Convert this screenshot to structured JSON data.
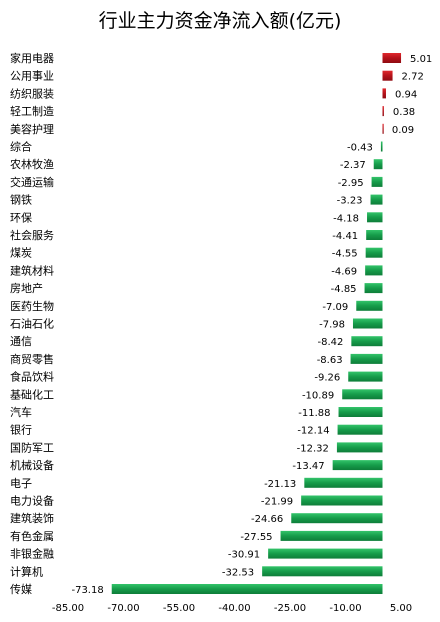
{
  "chart_data": {
    "type": "bar",
    "orientation": "horizontal",
    "title": "行业主力资金净流入额(亿元)",
    "xlabel": "",
    "ylabel": "",
    "xlim": [
      -85,
      5
    ],
    "xticks": [
      "-85.00",
      "-70.00",
      "-55.00",
      "-40.00",
      "-25.00",
      "-10.00",
      "5.00"
    ],
    "xtick_values": [
      -85,
      -70,
      -55,
      -40,
      -25,
      -10,
      5
    ],
    "grid": false,
    "legend": "none",
    "categories": [
      "家用电器",
      "公用事业",
      "纺织服装",
      "轻工制造",
      "美容护理",
      "综合",
      "农林牧渔",
      "交通运输",
      "钢铁",
      "环保",
      "社会服务",
      "煤炭",
      "建筑材料",
      "房地产",
      "医药生物",
      "石油石化",
      "通信",
      "商贸零售",
      "食品饮料",
      "基础化工",
      "汽车",
      "银行",
      "国防军工",
      "机械设备",
      "电子",
      "电力设备",
      "建筑装饰",
      "有色金属",
      "非银金融",
      "计算机",
      "传媒"
    ],
    "values": [
      5.01,
      2.72,
      0.94,
      0.38,
      0.09,
      -0.43,
      -2.37,
      -2.95,
      -3.23,
      -4.18,
      -4.41,
      -4.55,
      -4.69,
      -4.85,
      -7.09,
      -7.98,
      -8.42,
      -8.63,
      -9.26,
      -10.89,
      -11.88,
      -12.14,
      -12.32,
      -13.47,
      -21.13,
      -21.99,
      -24.66,
      -27.55,
      -30.91,
      -32.53,
      -73.18
    ],
    "value_labels": [
      "5.01",
      "2.72",
      "0.94",
      "0.38",
      "0.09",
      "-0.43",
      "-2.37",
      "-2.95",
      "-3.23",
      "-4.18",
      "-4.41",
      "-4.55",
      "-4.69",
      "-4.85",
      "-7.09",
      "-7.98",
      "-8.42",
      "-8.63",
      "-9.26",
      "-10.89",
      "-11.88",
      "-12.14",
      "-12.32",
      "-13.47",
      "-21.13",
      "-21.99",
      "-24.66",
      "-27.55",
      "-30.91",
      "-32.53",
      "-73.18"
    ],
    "colors": {
      "positive": "#c0161c",
      "negative": "#1aa150"
    }
  }
}
